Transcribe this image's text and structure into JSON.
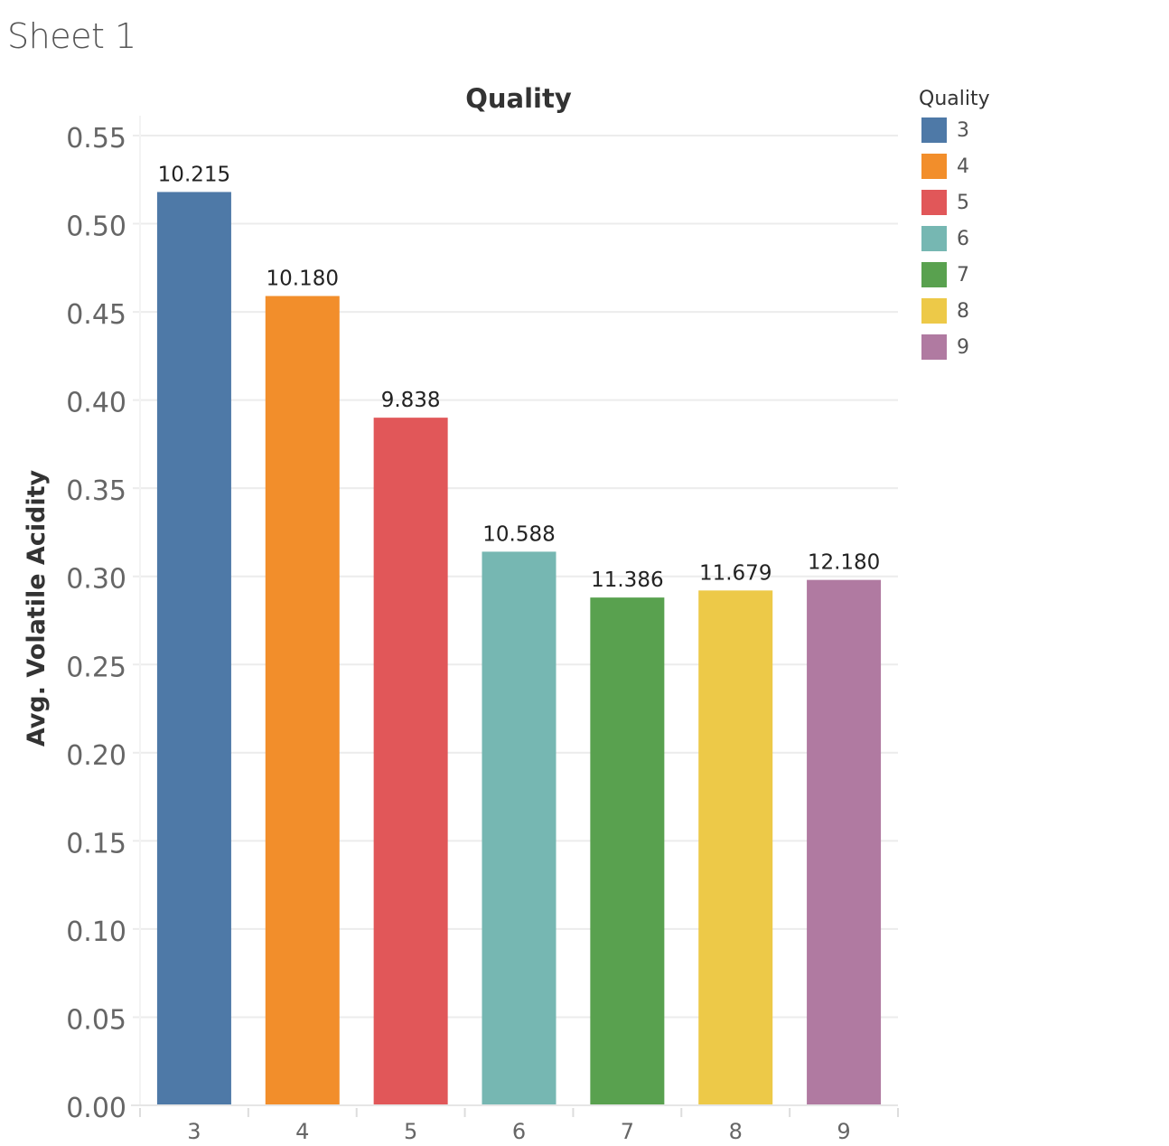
{
  "sheet": {
    "title": "Sheet 1"
  },
  "chart_data": {
    "type": "bar",
    "title": "Quality",
    "xlabel": "",
    "ylabel": "Avg. Volatile Acidity",
    "categories": [
      "3",
      "4",
      "5",
      "6",
      "7",
      "8",
      "9"
    ],
    "values": [
      0.518,
      0.459,
      0.39,
      0.314,
      0.288,
      0.292,
      0.298
    ],
    "data_labels": [
      "10.215",
      "10.180",
      "9.838",
      "10.588",
      "11.386",
      "11.679",
      "12.180"
    ],
    "colors": [
      "#4e79a7",
      "#f28e2b",
      "#e15759",
      "#76b7b2",
      "#59a14f",
      "#edc948",
      "#b07aa1"
    ],
    "ylim": [
      0,
      0.55
    ],
    "yticks": [
      0.0,
      0.05,
      0.1,
      0.15,
      0.2,
      0.25,
      0.3,
      0.35,
      0.4,
      0.45,
      0.5,
      0.55
    ],
    "ytick_labels": [
      "0.00",
      "0.05",
      "0.10",
      "0.15",
      "0.20",
      "0.25",
      "0.30",
      "0.35",
      "0.40",
      "0.45",
      "0.50",
      "0.55"
    ],
    "grid": true,
    "legend": {
      "title": "Quality",
      "placement": "top-right",
      "items": [
        "3",
        "4",
        "5",
        "6",
        "7",
        "8",
        "9"
      ]
    }
  }
}
